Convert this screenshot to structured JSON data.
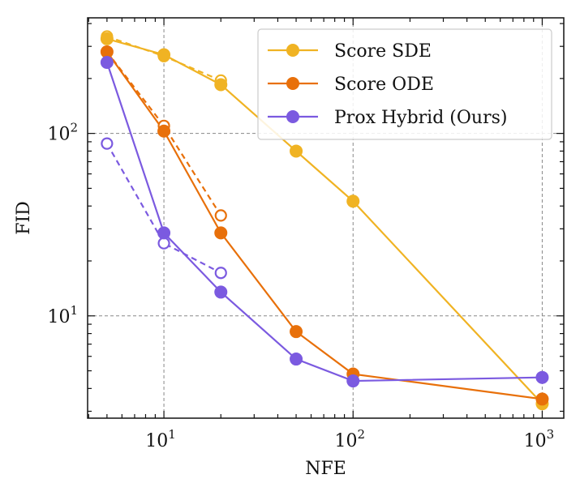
{
  "chart_data": {
    "type": "line",
    "title": "",
    "xlabel": "NFE",
    "ylabel": "FID",
    "xscale": "log",
    "yscale": "log",
    "xlim": [
      3.95,
      1300
    ],
    "ylim": [
      2.75,
      430
    ],
    "grid": true,
    "legend_position": "top-right",
    "x_ticks": [
      {
        "value": 10,
        "base": "10",
        "exp": "1"
      },
      {
        "value": 100,
        "base": "10",
        "exp": "2"
      },
      {
        "value": 1000,
        "base": "10",
        "exp": "3"
      }
    ],
    "y_ticks": [
      {
        "value": 10,
        "base": "10",
        "exp": "1"
      },
      {
        "value": 100,
        "base": "10",
        "exp": "2"
      }
    ],
    "series": [
      {
        "name": "Score SDE",
        "color": "#f0b323",
        "solid": {
          "x": [
            5,
            10,
            20,
            50,
            100,
            1000
          ],
          "y": [
            330,
            270,
            185,
            80,
            42.5,
            3.3
          ]
        },
        "dashed": {
          "x": [
            5,
            10,
            20
          ],
          "y": [
            340,
            265,
            195
          ]
        }
      },
      {
        "name": "Score ODE",
        "color": "#e8700a",
        "solid": {
          "x": [
            5,
            10,
            20,
            50,
            100,
            1000
          ],
          "y": [
            280,
            103,
            28.5,
            8.2,
            4.8,
            3.5
          ]
        },
        "dashed": {
          "x": [
            5,
            10,
            20
          ],
          "y": [
            280,
            110,
            35.5
          ]
        }
      },
      {
        "name": "Prox Hybrid (Ours)",
        "color": "#7b5ae0",
        "solid": {
          "x": [
            5,
            10,
            20,
            50,
            100,
            1000
          ],
          "y": [
            245,
            28.5,
            13.5,
            5.8,
            4.4,
            4.6
          ]
        },
        "dashed": {
          "x": [
            5,
            10,
            20
          ],
          "y": [
            88,
            25,
            17.2
          ]
        }
      }
    ]
  }
}
